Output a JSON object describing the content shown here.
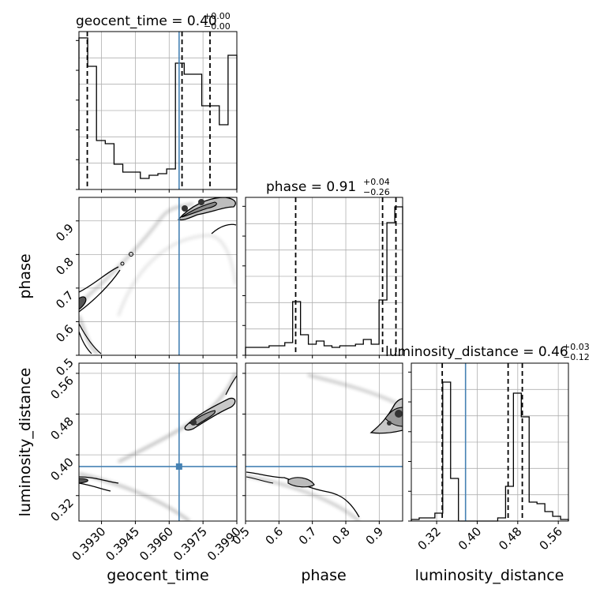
{
  "colors": {
    "truth": "#4682b4",
    "hist": "#000000",
    "grid": "#b0b0b0",
    "density": "#000000"
  },
  "chart_data": {
    "type": "corner",
    "parameters": [
      "geocent_time",
      "phase",
      "luminosity_distance"
    ],
    "axis_labels": {
      "geocent_time": "geocent_time",
      "phase": "phase",
      "luminosity_distance": "luminosity_distance"
    },
    "titles": [
      {
        "param": "geocent_time",
        "name": "geocent_time",
        "median": "0.40",
        "plus": "+0.00",
        "minus": "−0.00"
      },
      {
        "param": "phase",
        "name": "phase",
        "median": "0.91",
        "plus": "+0.04",
        "minus": "−0.26"
      },
      {
        "param": "luminosity_distance",
        "name": "luminosity_distance",
        "median": "0.46",
        "plus": "+0.03",
        "minus": "−0.12"
      }
    ],
    "ranges": {
      "geocent_time": [
        0.392,
        0.399
      ],
      "phase": [
        0.5,
        0.97
      ],
      "luminosity_distance": [
        0.27,
        0.58
      ]
    },
    "ticks": {
      "geocent_time": [
        0.393,
        0.3945,
        0.396,
        0.3975,
        0.399
      ],
      "phase": [
        0.5,
        0.6,
        0.7,
        0.8,
        0.9
      ],
      "luminosity_distance": [
        0.32,
        0.4,
        0.48,
        0.56
      ]
    },
    "tick_labels": {
      "geocent_time": [
        "0.3930",
        "0.3945",
        "0.3960",
        "0.3975",
        "0.3990"
      ],
      "phase": [
        "0.5",
        "0.6",
        "0.7",
        "0.8",
        "0.9"
      ],
      "luminosity_distance": [
        "0.32",
        "0.40",
        "0.48",
        "0.56"
      ]
    },
    "truths": {
      "geocent_time": 0.39644,
      "phase": null,
      "luminosity_distance": 0.377
    },
    "quantiles": {
      "geocent_time": [
        0.39237,
        0.39657,
        0.39781
      ],
      "phase": [
        0.65,
        0.91,
        0.95
      ],
      "luminosity_distance": [
        0.331,
        0.461,
        0.489
      ]
    },
    "histograms": {
      "geocent_time": [
        0.96,
        0.78,
        0.31,
        0.29,
        0.16,
        0.11,
        0.11,
        0.07,
        0.09,
        0.1,
        0.13,
        0.8,
        0.73,
        0.73,
        0.53,
        0.53,
        0.41,
        0.85
      ],
      "phase": [
        0.05,
        0.05,
        0.05,
        0.06,
        0.06,
        0.08,
        0.34,
        0.13,
        0.07,
        0.09,
        0.06,
        0.05,
        0.06,
        0.06,
        0.07,
        0.1,
        0.07,
        0.35,
        0.84,
        0.94
      ],
      "luminosity_distance": [
        0.01,
        0.02,
        0.02,
        0.05,
        0.88,
        0.27,
        0.0,
        0.0,
        0.0,
        0.0,
        0.0,
        0.02,
        0.22,
        0.81,
        0.66,
        0.12,
        0.11,
        0.06,
        0.03,
        0.01
      ]
    },
    "grid": true
  }
}
